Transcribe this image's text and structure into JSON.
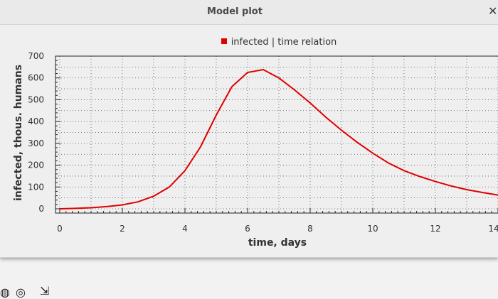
{
  "window": {
    "title": "Model plot"
  },
  "chart_data": {
    "type": "line",
    "title": "",
    "xlabel": "time, days",
    "ylabel": "infected, thous. humans",
    "xlim": [
      0,
      14
    ],
    "ylim": [
      0,
      700
    ],
    "x_ticks": [
      0,
      2,
      4,
      6,
      8,
      10,
      12,
      14
    ],
    "y_ticks": [
      0,
      100,
      200,
      300,
      400,
      500,
      600,
      700
    ],
    "grid": true,
    "legend_position": "top",
    "series": [
      {
        "name": "infected | time relation",
        "color": "#e00000",
        "x": [
          0,
          0.5,
          1,
          1.5,
          2,
          2.5,
          3,
          3.5,
          4,
          4.5,
          5,
          5.5,
          6,
          6.5,
          7,
          7.5,
          8,
          8.5,
          9,
          9.5,
          10,
          10.5,
          11,
          11.5,
          12,
          12.5,
          13,
          13.5,
          14
        ],
        "y": [
          0,
          2,
          5,
          10,
          18,
          32,
          58,
          100,
          175,
          285,
          430,
          560,
          625,
          638,
          600,
          545,
          485,
          420,
          360,
          305,
          255,
          210,
          175,
          148,
          125,
          105,
          88,
          75,
          63
        ]
      }
    ]
  }
}
